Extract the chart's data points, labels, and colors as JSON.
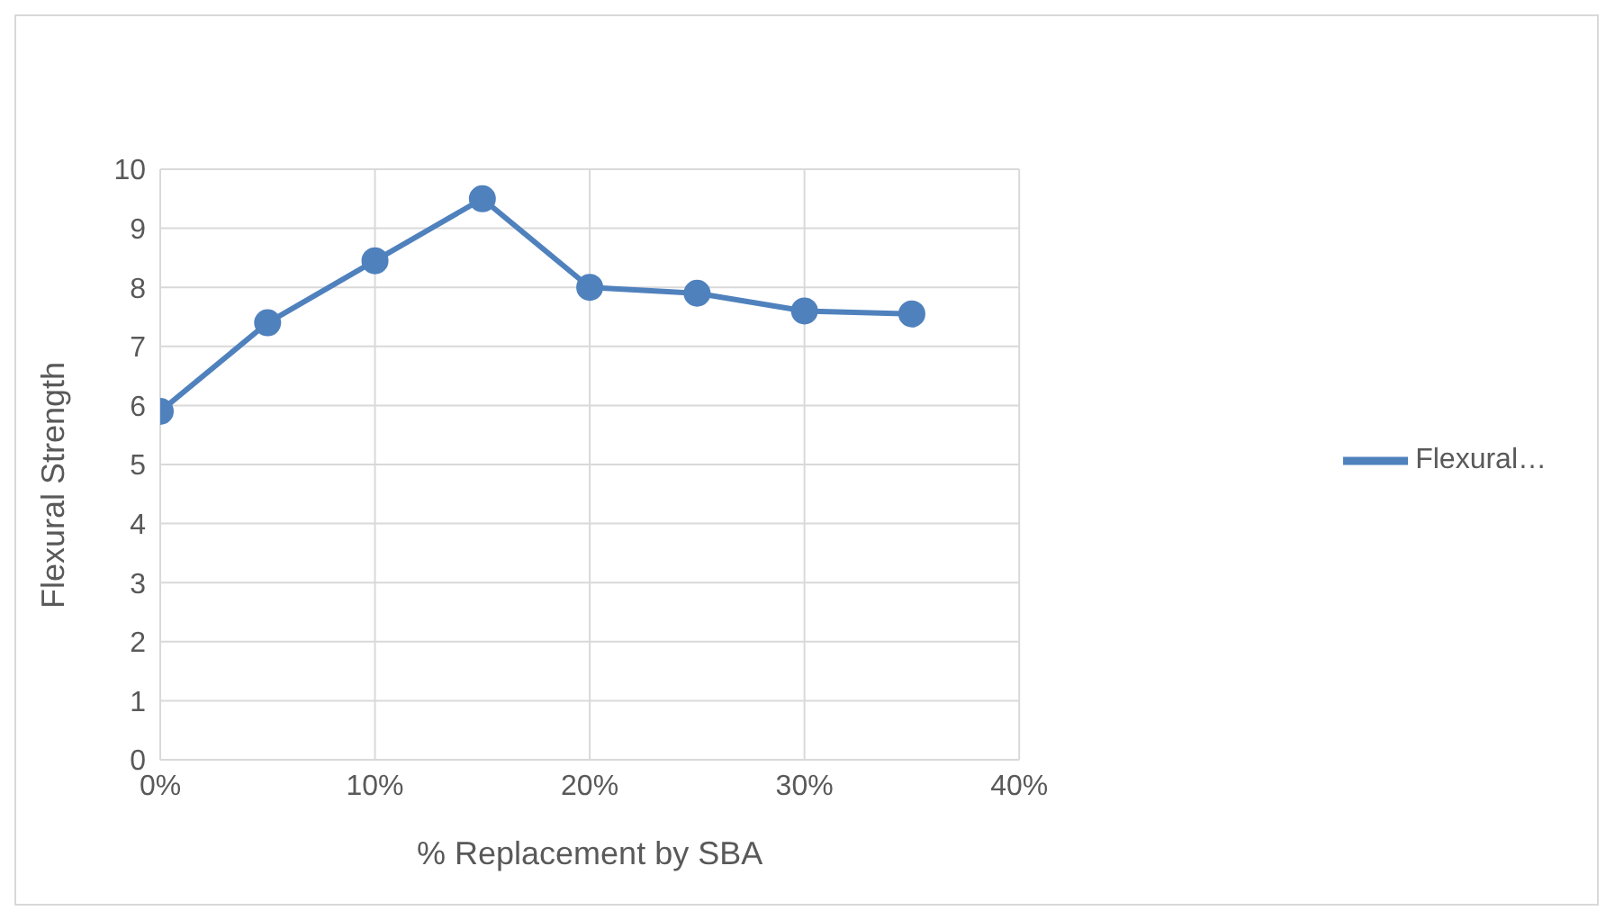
{
  "chart_data": {
    "type": "line",
    "xlabel": "% Replacement by SBA",
    "ylabel": "Flexural Strength",
    "x": [
      0,
      5,
      10,
      15,
      20,
      25,
      30,
      35
    ],
    "series": [
      {
        "name": "Flexural…",
        "color": "#4f81bd",
        "values": [
          5.9,
          7.4,
          8.45,
          9.5,
          8.0,
          7.9,
          7.6,
          7.55
        ]
      }
    ],
    "xlim": [
      0,
      40
    ],
    "xticks": [
      {
        "value": 0,
        "label": "0%"
      },
      {
        "value": 10,
        "label": "10%"
      },
      {
        "value": 20,
        "label": "20%"
      },
      {
        "value": 30,
        "label": "30%"
      },
      {
        "value": 40,
        "label": "40%"
      }
    ],
    "ylim": [
      0,
      10
    ],
    "yticks": [
      0,
      1,
      2,
      3,
      4,
      5,
      6,
      7,
      8,
      9,
      10
    ],
    "grid": true,
    "legend": "right",
    "marker": "circle",
    "line_style": "solid"
  }
}
